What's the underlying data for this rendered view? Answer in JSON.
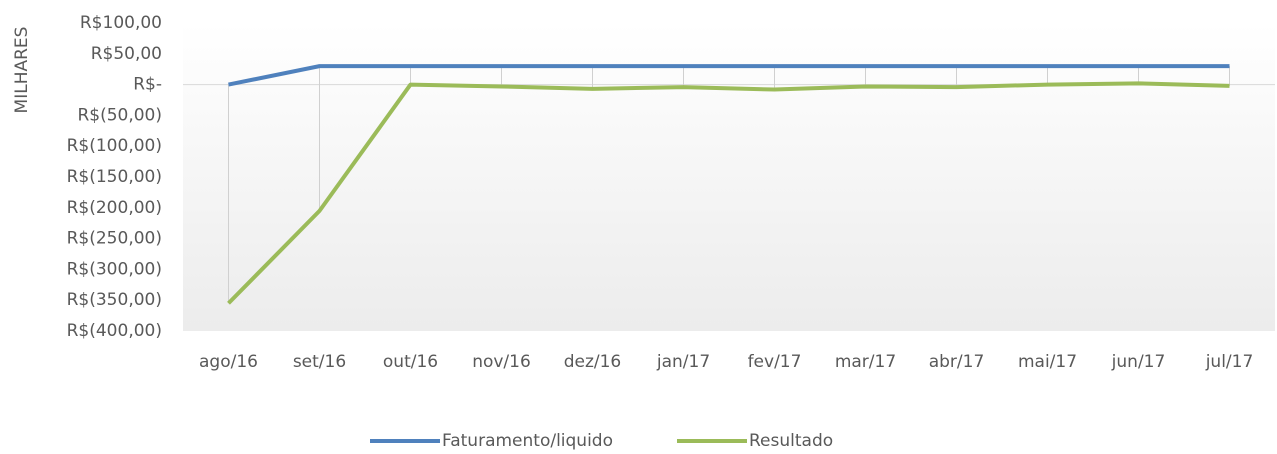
{
  "chart_data": {
    "type": "line",
    "y_label": "MILHARES",
    "categories": [
      "ago/16",
      "set/16",
      "out/16",
      "nov/16",
      "dez/16",
      "jan/17",
      "fev/17",
      "mar/17",
      "abr/17",
      "mai/17",
      "jun/17",
      "jul/17"
    ],
    "series": [
      {
        "name": "Faturamento/liquido",
        "color": "#4f81bd",
        "values": [
          0,
          30,
          30,
          30,
          30,
          30,
          30,
          30,
          30,
          30,
          30,
          30
        ]
      },
      {
        "name": "Resultado",
        "color": "#9bbb59",
        "values": [
          -355,
          -205,
          0,
          -3,
          -7,
          -4,
          -8,
          -3,
          -4,
          0,
          2,
          -2
        ]
      }
    ],
    "ylim": [
      -400,
      100
    ],
    "yticks": [
      {
        "value": 100,
        "label": "R$100,00"
      },
      {
        "value": 50,
        "label": "R$50,00"
      },
      {
        "value": 0,
        "label": "R$-"
      },
      {
        "value": -50,
        "label": "R$(50,00)"
      },
      {
        "value": -100,
        "label": "R$(100,00)"
      },
      {
        "value": -150,
        "label": "R$(150,00)"
      },
      {
        "value": -200,
        "label": "R$(200,00)"
      },
      {
        "value": -250,
        "label": "R$(250,00)"
      },
      {
        "value": -300,
        "label": "R$(300,00)"
      },
      {
        "value": -350,
        "label": "R$(350,00)"
      },
      {
        "value": -400,
        "label": "R$(400,00)"
      }
    ],
    "high_low_lines": true,
    "legend": "bottom"
  }
}
